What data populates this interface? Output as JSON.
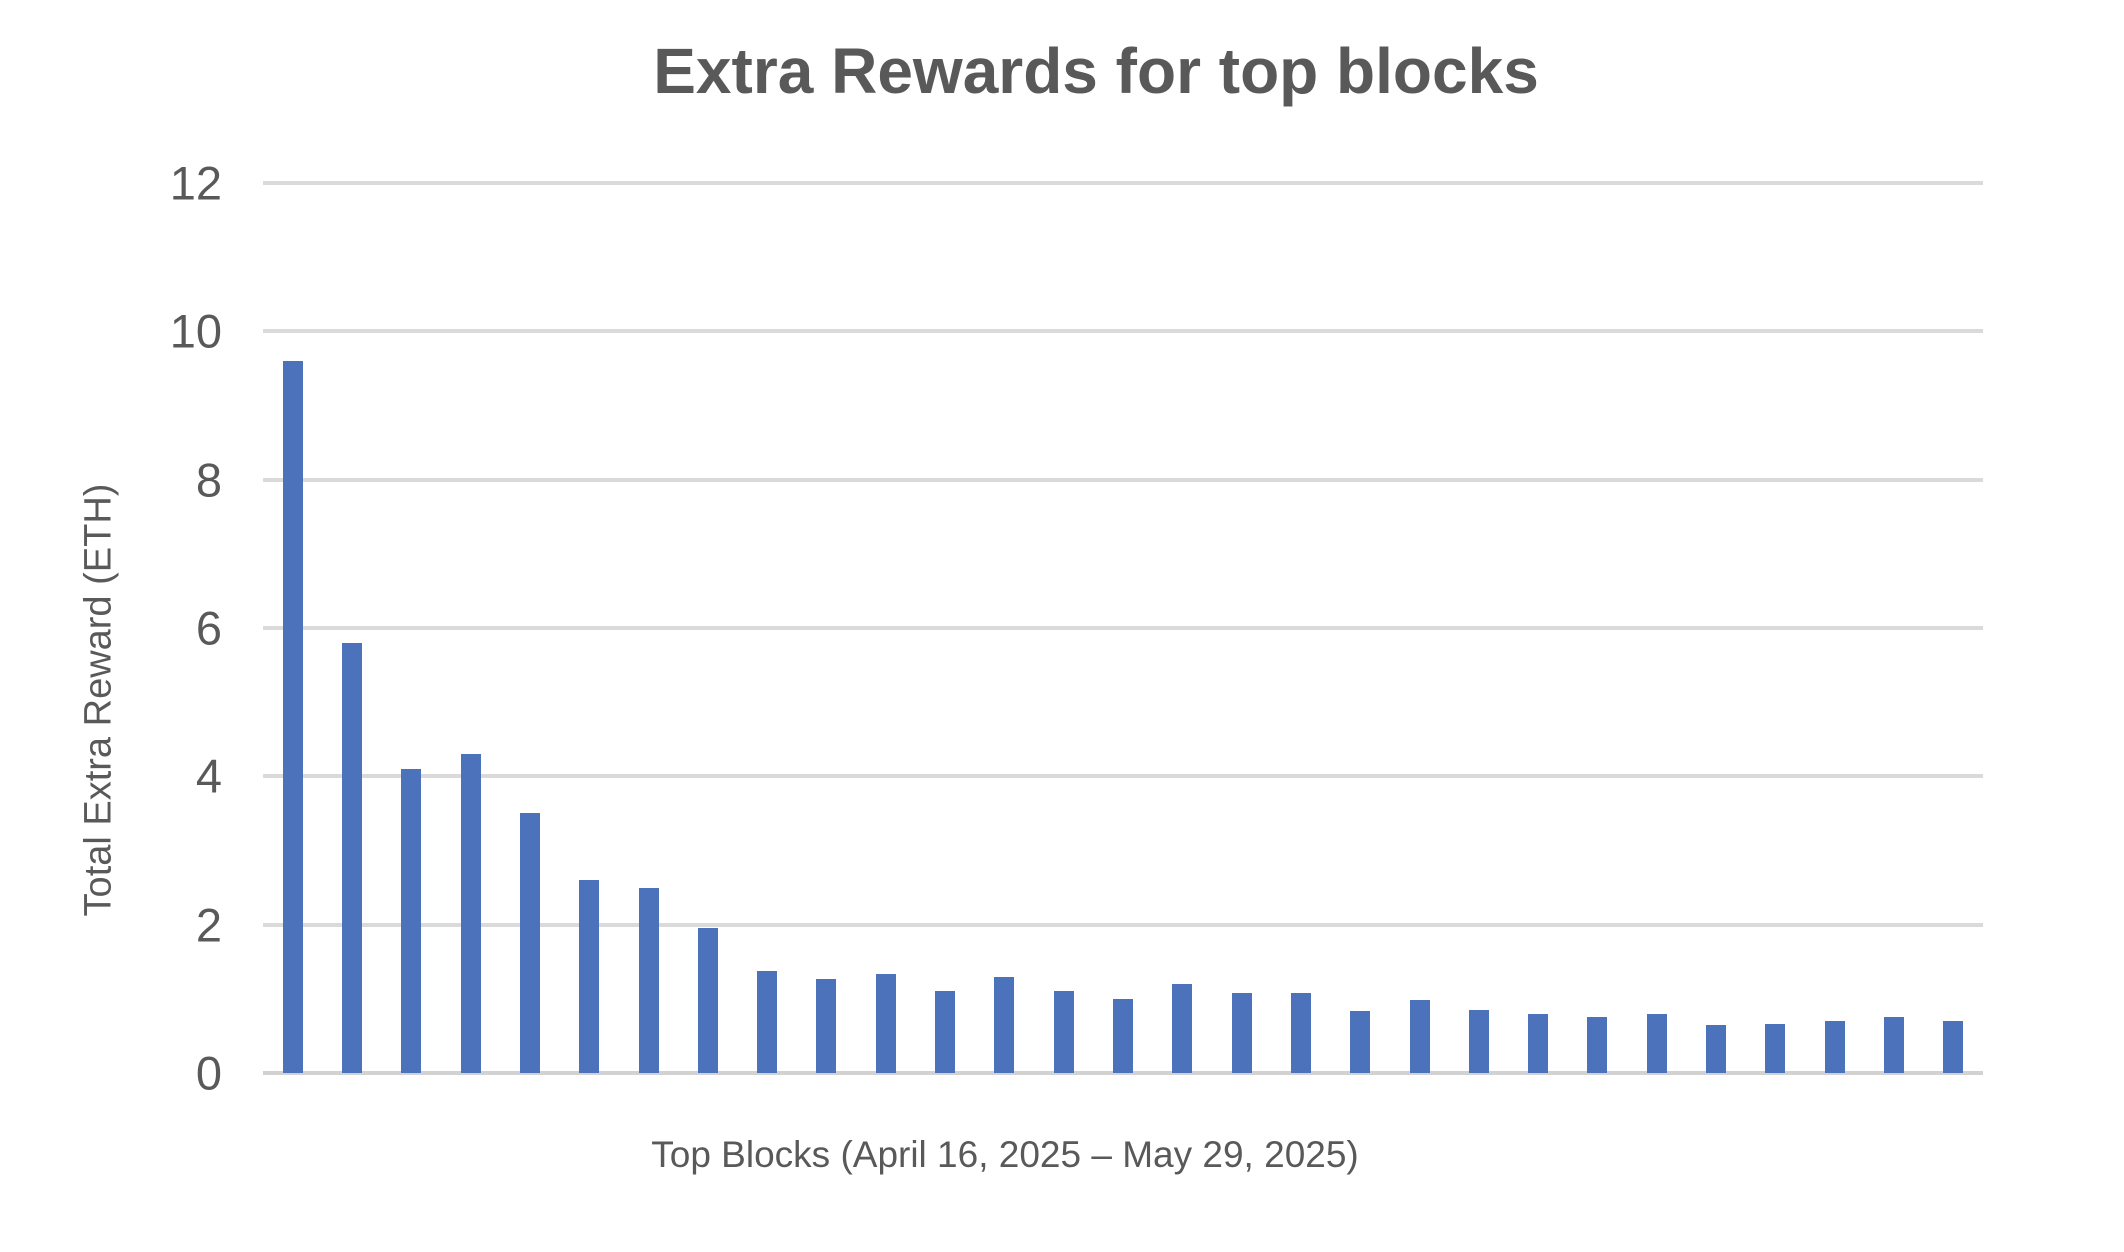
{
  "colors": {
    "bar": "#4c72bc",
    "gridline": "#dadada",
    "baseline": "#d2d2d2",
    "text": "#595959",
    "background": "#ffffff"
  },
  "chart_data": {
    "type": "bar",
    "title": "Extra Rewards for top blocks",
    "xlabel": "Top Blocks (April 16, 2025 – May 29, 2025)",
    "ylabel": "Total Extra Reward (ETH)",
    "ylim": [
      0,
      12
    ],
    "ytick_labels": [
      "12",
      "10",
      "8",
      "6",
      "4",
      "2",
      "0"
    ],
    "yticks": [
      12,
      10,
      8,
      6,
      4,
      2,
      0
    ],
    "x_tick_labels": [],
    "grid": true,
    "legend": false,
    "bar_count": 29,
    "values": [
      9.6,
      5.8,
      4.1,
      4.3,
      3.5,
      2.6,
      2.5,
      1.95,
      1.37,
      1.27,
      1.33,
      1.1,
      1.3,
      1.1,
      1.0,
      1.2,
      1.08,
      1.08,
      0.84,
      0.98,
      0.85,
      0.8,
      0.75,
      0.8,
      0.65,
      0.66,
      0.7,
      0.76,
      0.7
    ]
  }
}
